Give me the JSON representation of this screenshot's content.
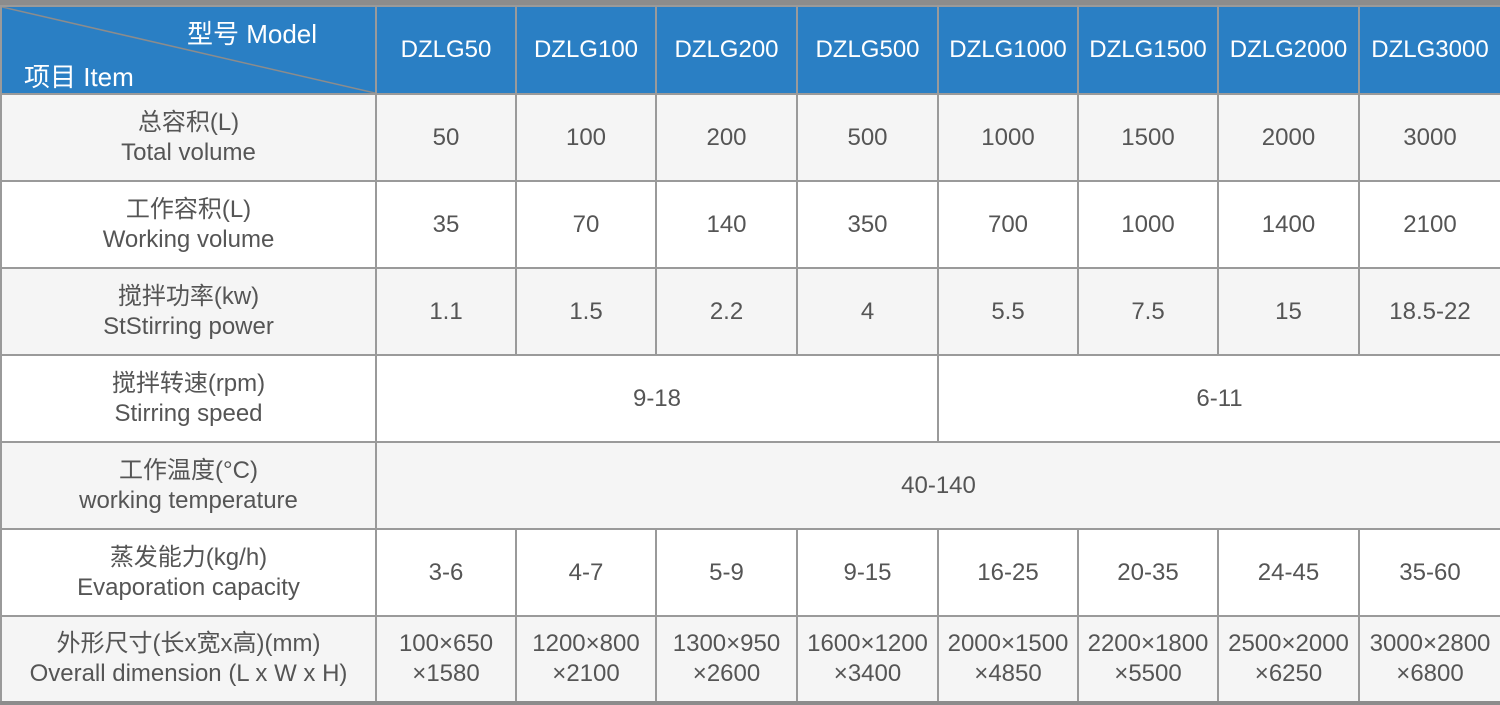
{
  "header": {
    "model_label": "型号 Model",
    "item_label": "项目 Item",
    "models": [
      "DZLG50",
      "DZLG100",
      "DZLG200",
      "DZLG500",
      "DZLG1000",
      "DZLG1500",
      "DZLG2000",
      "DZLG3000"
    ]
  },
  "colors": {
    "header_bg": "#2a7fc4",
    "row_alt_bg": "#f5f5f5",
    "border": "#9a9a9a"
  },
  "rows": [
    {
      "label_cn": "总容积(L)",
      "label_en": "Total volume",
      "cells": [
        {
          "v": "50"
        },
        {
          "v": "100"
        },
        {
          "v": "200"
        },
        {
          "v": "500"
        },
        {
          "v": "1000"
        },
        {
          "v": "1500"
        },
        {
          "v": "2000"
        },
        {
          "v": "3000"
        }
      ]
    },
    {
      "label_cn": "工作容积(L)",
      "label_en": "Working volume",
      "cells": [
        {
          "v": "35"
        },
        {
          "v": "70"
        },
        {
          "v": "140"
        },
        {
          "v": "350"
        },
        {
          "v": "700"
        },
        {
          "v": "1000"
        },
        {
          "v": "1400"
        },
        {
          "v": "2100"
        }
      ]
    },
    {
      "label_cn": "搅拌功率(kw)",
      "label_en": "StStirring power",
      "cells": [
        {
          "v": "1.1"
        },
        {
          "v": "1.5"
        },
        {
          "v": "2.2"
        },
        {
          "v": "4"
        },
        {
          "v": "5.5"
        },
        {
          "v": "7.5"
        },
        {
          "v": "15"
        },
        {
          "v": "18.5-22"
        }
      ]
    },
    {
      "label_cn": "搅拌转速(rpm)",
      "label_en": "Stirring speed",
      "cells": [
        {
          "v": "9-18",
          "span": 4
        },
        {
          "v": "6-11",
          "span": 4
        }
      ]
    },
    {
      "label_cn": "工作温度(°C)",
      "label_en": "working temperature",
      "cells": [
        {
          "v": "40-140",
          "span": 8
        }
      ]
    },
    {
      "label_cn": "蒸发能力(kg/h)",
      "label_en": "Evaporation capacity",
      "cells": [
        {
          "v": "3-6"
        },
        {
          "v": "4-7"
        },
        {
          "v": "5-9"
        },
        {
          "v": "9-15"
        },
        {
          "v": "16-25"
        },
        {
          "v": "20-35"
        },
        {
          "v": "24-45"
        },
        {
          "v": "35-60"
        }
      ]
    },
    {
      "label_cn": "外形尺寸(长x宽x高)(mm)",
      "label_en": "Overall dimension (L x W x H)",
      "cells": [
        {
          "v": "100×650",
          "v2": "×1580"
        },
        {
          "v": "1200×800",
          "v2": "×2100"
        },
        {
          "v": "1300×950",
          "v2": "×2600"
        },
        {
          "v": "1600×1200",
          "v2": "×3400"
        },
        {
          "v": "2000×1500",
          "v2": "×4850"
        },
        {
          "v": "2200×1800",
          "v2": "×5500"
        },
        {
          "v": "2500×2000",
          "v2": "×6250"
        },
        {
          "v": "3000×2800",
          "v2": "×6800"
        }
      ]
    }
  ]
}
